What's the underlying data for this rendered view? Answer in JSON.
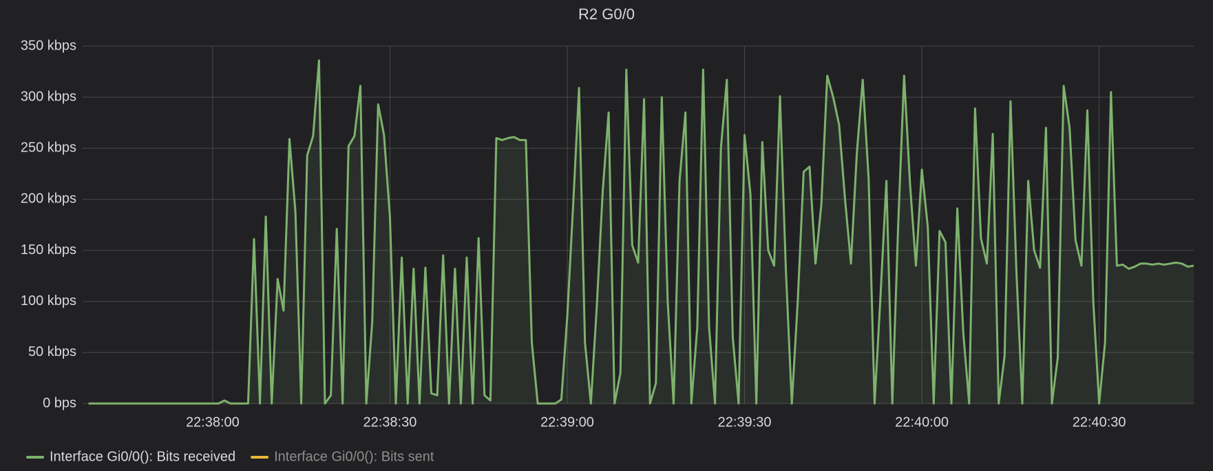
{
  "chart_data": {
    "type": "line",
    "title": "R2 G0/0",
    "x": [
      "22:37:39",
      "22:37:40",
      "22:37:41",
      "22:37:42",
      "22:37:43",
      "22:37:44",
      "22:37:45",
      "22:37:46",
      "22:37:47",
      "22:37:48",
      "22:37:49",
      "22:37:50",
      "22:37:51",
      "22:37:52",
      "22:37:53",
      "22:37:54",
      "22:37:55",
      "22:37:56",
      "22:37:57",
      "22:37:58",
      "22:37:59",
      "22:38:00",
      "22:38:01",
      "22:38:02",
      "22:38:03",
      "22:38:04",
      "22:38:05",
      "22:38:06",
      "22:38:07",
      "22:38:08",
      "22:38:09",
      "22:38:10",
      "22:38:11",
      "22:38:12",
      "22:38:13",
      "22:38:14",
      "22:38:15",
      "22:38:16",
      "22:38:17",
      "22:38:18",
      "22:38:19",
      "22:38:20",
      "22:38:21",
      "22:38:22",
      "22:38:23",
      "22:38:24",
      "22:38:25",
      "22:38:26",
      "22:38:27",
      "22:38:28",
      "22:38:29",
      "22:38:30",
      "22:38:31",
      "22:38:32",
      "22:38:33",
      "22:38:34",
      "22:38:35",
      "22:38:36",
      "22:38:37",
      "22:38:38",
      "22:38:39",
      "22:38:40",
      "22:38:41",
      "22:38:42",
      "22:38:43",
      "22:38:44",
      "22:38:45",
      "22:38:46",
      "22:38:47",
      "22:38:48",
      "22:38:49",
      "22:38:50",
      "22:38:51",
      "22:38:52",
      "22:38:53",
      "22:38:54",
      "22:38:55",
      "22:38:56",
      "22:38:57",
      "22:38:58",
      "22:38:59",
      "22:39:00",
      "22:39:01",
      "22:39:02",
      "22:39:03",
      "22:39:04",
      "22:39:05",
      "22:39:06",
      "22:39:07",
      "22:39:08",
      "22:39:09",
      "22:39:10",
      "22:39:11",
      "22:39:12",
      "22:39:13",
      "22:39:14",
      "22:39:15",
      "22:39:16",
      "22:39:17",
      "22:39:18",
      "22:39:19",
      "22:39:20",
      "22:39:21",
      "22:39:22",
      "22:39:23",
      "22:39:24",
      "22:39:25",
      "22:39:26",
      "22:39:27",
      "22:39:28",
      "22:39:29",
      "22:39:30",
      "22:39:31",
      "22:39:32",
      "22:39:33",
      "22:39:34",
      "22:39:35",
      "22:39:36",
      "22:39:37",
      "22:39:38",
      "22:39:39",
      "22:39:40",
      "22:39:41",
      "22:39:42",
      "22:39:43",
      "22:39:44",
      "22:39:45",
      "22:39:46",
      "22:39:47",
      "22:39:48",
      "22:39:49",
      "22:39:50",
      "22:39:51",
      "22:39:52",
      "22:39:53",
      "22:39:54",
      "22:39:55",
      "22:39:56",
      "22:39:57",
      "22:39:58",
      "22:39:59",
      "22:40:00",
      "22:40:01",
      "22:40:02",
      "22:40:03",
      "22:40:04",
      "22:40:05",
      "22:40:06",
      "22:40:07",
      "22:40:08",
      "22:40:09",
      "22:40:10",
      "22:40:11",
      "22:40:12",
      "22:40:13",
      "22:40:14",
      "22:40:15",
      "22:40:16",
      "22:40:17",
      "22:40:18",
      "22:40:19",
      "22:40:20",
      "22:40:21",
      "22:40:22",
      "22:40:23",
      "22:40:24",
      "22:40:25",
      "22:40:26",
      "22:40:27",
      "22:40:28",
      "22:40:29",
      "22:40:30",
      "22:40:31",
      "22:40:32",
      "22:40:33",
      "22:40:34",
      "22:40:35",
      "22:40:36",
      "22:40:37",
      "22:40:38",
      "22:40:39",
      "22:40:40",
      "22:40:41",
      "22:40:42",
      "22:40:43",
      "22:40:44",
      "22:40:45",
      "22:40:46"
    ],
    "series": [
      {
        "name": "Interface Gi0/0(): Bits received",
        "color": "#7eb26d",
        "visible": true,
        "values": [
          0,
          0,
          0,
          0,
          0,
          0,
          0,
          0,
          0,
          0,
          0,
          0,
          0,
          0,
          0,
          0,
          0,
          0,
          0,
          0,
          0,
          0,
          0,
          3,
          0,
          0,
          0,
          0,
          161,
          0,
          183,
          0,
          122,
          91,
          259,
          188,
          0,
          243,
          262,
          336,
          0,
          8,
          171,
          0,
          252,
          262,
          311,
          0,
          80,
          293,
          263,
          183,
          0,
          143,
          0,
          132,
          0,
          133,
          10,
          8,
          145,
          0,
          132,
          0,
          143,
          0,
          162,
          8,
          3,
          260,
          258,
          260,
          261,
          258,
          258,
          60,
          0,
          0,
          0,
          0,
          4,
          85,
          195,
          309,
          60,
          0,
          95,
          208,
          285,
          0,
          30,
          327,
          155,
          138,
          298,
          0,
          20,
          300,
          100,
          0,
          218,
          285,
          0,
          75,
          327,
          75,
          0,
          250,
          317,
          65,
          0,
          263,
          205,
          0,
          256,
          150,
          135,
          301,
          130,
          0,
          100,
          227,
          232,
          137,
          195,
          321,
          300,
          273,
          200,
          137,
          245,
          317,
          220,
          0,
          105,
          218,
          0,
          175,
          321,
          215,
          135,
          229,
          173,
          0,
          169,
          158,
          0,
          191,
          70,
          0,
          289,
          162,
          137,
          264,
          0,
          47,
          296,
          130,
          0,
          218,
          150,
          133,
          270,
          0,
          45,
          311,
          270,
          160,
          135,
          287,
          100,
          0,
          60,
          305,
          135,
          136,
          132,
          134,
          137,
          137,
          136,
          137,
          136,
          137,
          138,
          137,
          134,
          135
        ]
      },
      {
        "name": "Interface Gi0/0(): Bits sent",
        "color": "#eab839",
        "visible": false
      }
    ],
    "xlim": [
      "22:37:38",
      "22:40:46"
    ],
    "xticks": [
      "22:38:00",
      "22:38:30",
      "22:39:00",
      "22:39:30",
      "22:40:00",
      "22:40:30"
    ],
    "ylim": [
      0,
      350
    ],
    "yticks": [
      {
        "value": 0,
        "label": "0 bps"
      },
      {
        "value": 50,
        "label": "50 kbps"
      },
      {
        "value": 100,
        "label": "100 kbps"
      },
      {
        "value": 150,
        "label": "150 kbps"
      },
      {
        "value": 200,
        "label": "200 kbps"
      },
      {
        "value": 250,
        "label": "250 kbps"
      },
      {
        "value": 300,
        "label": "300 kbps"
      },
      {
        "value": 350,
        "label": "350 kbps"
      }
    ],
    "grid": true,
    "legend": "bottom-left"
  }
}
